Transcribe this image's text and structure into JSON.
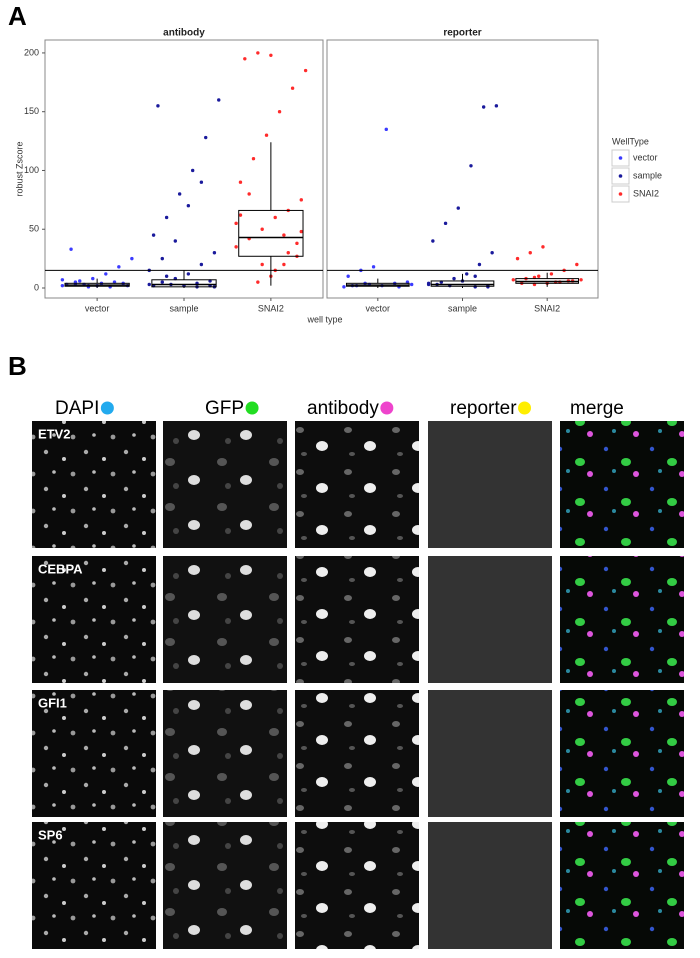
{
  "panel_a": {
    "label": "A",
    "y_label": "robust Zscore",
    "x_label": "well type",
    "legend_title": "WellType"
  },
  "chart_data": [
    {
      "type": "box",
      "title": "antibody",
      "categories": [
        "vector",
        "sample",
        "SNAI2"
      ],
      "ylim": [
        -8.5,
        211
      ],
      "yticks": [
        0,
        50,
        100,
        150,
        200
      ],
      "hline": 15,
      "boxes": [
        {
          "min": 0,
          "q1": 1.5,
          "median": 2.5,
          "q3": 4,
          "max": 8
        },
        {
          "min": 0,
          "q1": 1,
          "median": 3,
          "q3": 7,
          "max": 15
        },
        {
          "min": 2,
          "q1": 27,
          "median": 43,
          "q3": 66,
          "max": 124
        }
      ],
      "series": [
        {
          "name": "vector",
          "color": "#3b3bff",
          "values": [
            2,
            3,
            1,
            4,
            5,
            2,
            3,
            6,
            8,
            12,
            18,
            25,
            33,
            3,
            2,
            1,
            4,
            7,
            5,
            2
          ]
        },
        {
          "name": "sample",
          "color": "#1a1a9c",
          "values": [
            1,
            2,
            3,
            5,
            8,
            12,
            20,
            30,
            45,
            60,
            80,
            100,
            128,
            160,
            155,
            3,
            2,
            4,
            6,
            15,
            25,
            40,
            70,
            90,
            1,
            2,
            10
          ]
        },
        {
          "name": "SNAI2",
          "color": "#ff2b2b",
          "values": [
            5,
            10,
            20,
            27,
            35,
            42,
            50,
            60,
            66,
            75,
            90,
            110,
            130,
            150,
            170,
            185,
            195,
            200,
            198,
            45,
            38,
            55,
            80,
            20,
            15,
            30,
            48,
            62
          ]
        }
      ]
    },
    {
      "type": "box",
      "title": "reporter",
      "categories": [
        "vector",
        "sample",
        "SNAI2"
      ],
      "ylim": [
        -8.5,
        211
      ],
      "hline": 15,
      "boxes": [
        {
          "min": 0,
          "q1": 1.5,
          "median": 2.5,
          "q3": 4,
          "max": 8
        },
        {
          "min": 0,
          "q1": 1.5,
          "median": 3,
          "q3": 6,
          "max": 12
        },
        {
          "min": 1,
          "q1": 4,
          "median": 5.5,
          "q3": 8,
          "max": 13
        }
      ],
      "series": [
        {
          "name": "vector",
          "color": "#3b3bff",
          "values": [
            1,
            2,
            3,
            2,
            4,
            5,
            10,
            15,
            18,
            135,
            1,
            3,
            2,
            4
          ]
        },
        {
          "name": "sample",
          "color": "#1a1a9c",
          "values": [
            1,
            2,
            3,
            5,
            8,
            12,
            20,
            30,
            40,
            55,
            68,
            104,
            154,
            155,
            3,
            2,
            6,
            10,
            1,
            4
          ]
        },
        {
          "name": "SNAI2",
          "color": "#ff2b2b",
          "values": [
            3,
            4,
            5,
            6,
            7,
            8,
            10,
            12,
            15,
            20,
            25,
            30,
            35,
            5,
            6,
            7,
            4,
            9
          ]
        }
      ]
    }
  ],
  "panel_b": {
    "label": "B",
    "channels": [
      "DAPI",
      "GFP",
      "antibody",
      "reporter",
      "merge"
    ],
    "rows": [
      "ETV2",
      "CEBPA",
      "GFI1",
      "SP6"
    ]
  }
}
